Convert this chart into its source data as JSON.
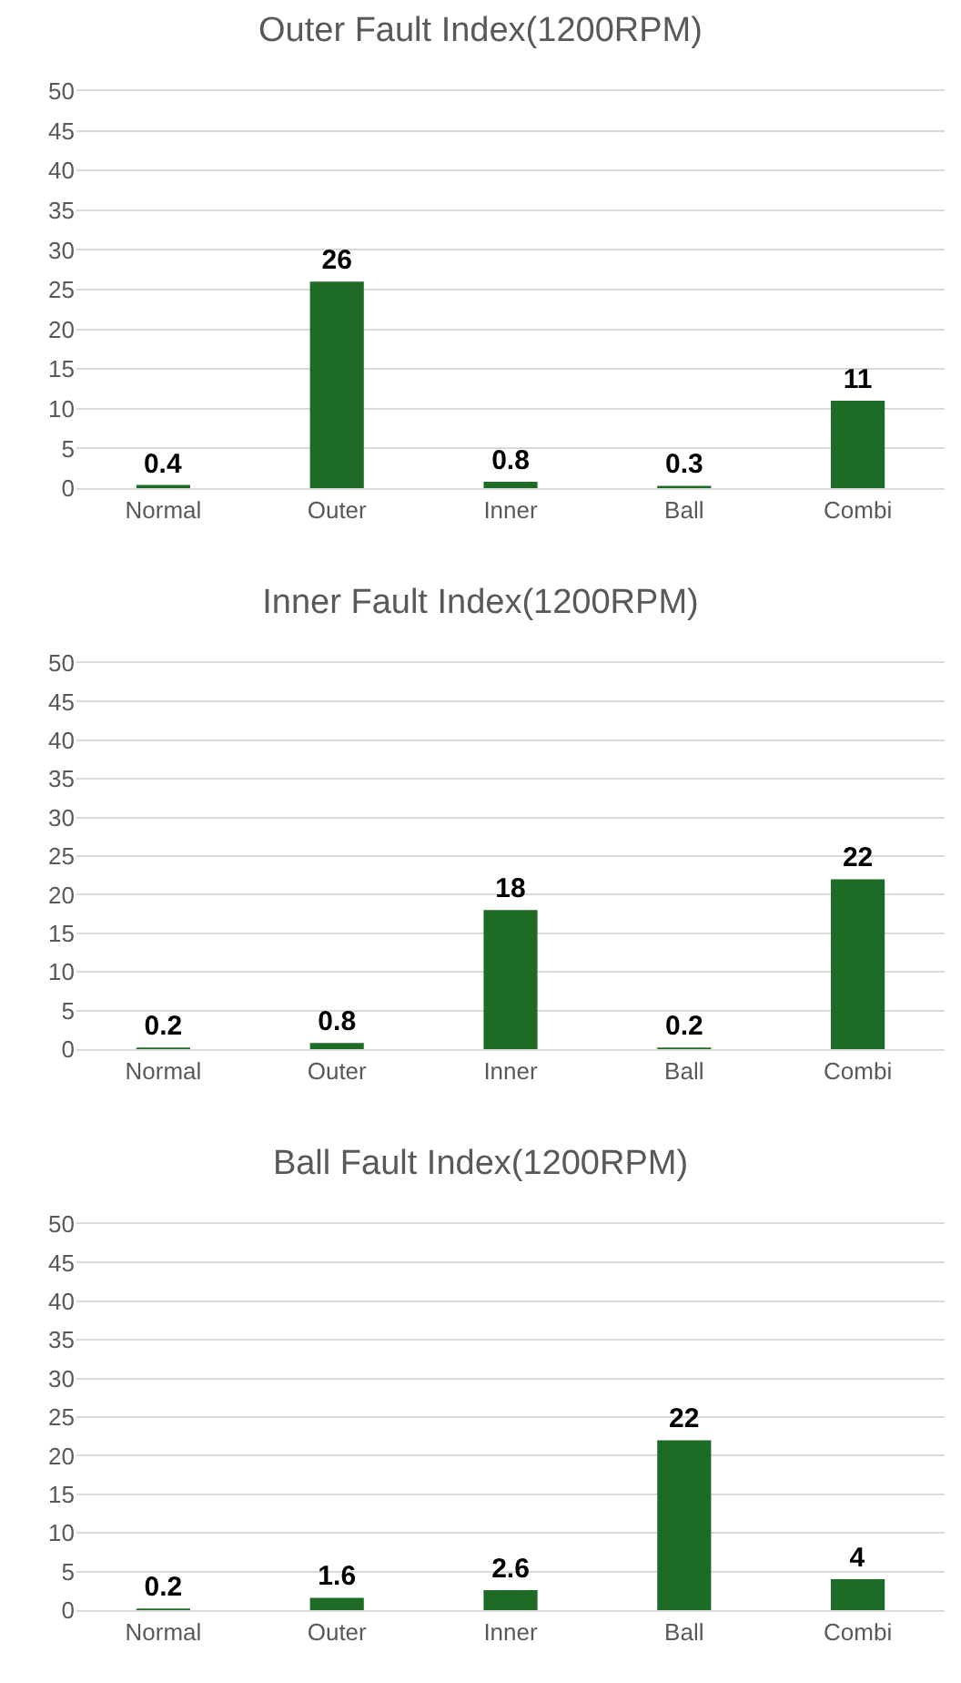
{
  "chart_data": [
    {
      "type": "bar",
      "title": "Outer Fault Index(1200RPM)",
      "categories": [
        "Normal",
        "Outer",
        "Inner",
        "Ball",
        "Combi"
      ],
      "values": [
        0.4,
        26,
        0.8,
        0.3,
        11
      ],
      "color": "#1d6b24",
      "ylim": [
        0,
        50
      ],
      "yticks": [
        0,
        5,
        10,
        15,
        20,
        25,
        30,
        35,
        40,
        45,
        50
      ],
      "grid": "y",
      "data_labels": true
    },
    {
      "type": "bar",
      "title": "Inner Fault Index(1200RPM)",
      "categories": [
        "Normal",
        "Outer",
        "Inner",
        "Ball",
        "Combi"
      ],
      "values": [
        0.2,
        0.8,
        18,
        0.2,
        22
      ],
      "color": "#1d6b24",
      "ylim": [
        0,
        50
      ],
      "yticks": [
        0,
        5,
        10,
        15,
        20,
        25,
        30,
        35,
        40,
        45,
        50
      ],
      "grid": "y",
      "data_labels": true
    },
    {
      "type": "bar",
      "title": "Ball Fault Index(1200RPM)",
      "categories": [
        "Normal",
        "Outer",
        "Inner",
        "Ball",
        "Combi"
      ],
      "values": [
        0.2,
        1.6,
        2.6,
        22,
        4
      ],
      "color": "#1d6b24",
      "ylim": [
        0,
        50
      ],
      "yticks": [
        0,
        5,
        10,
        15,
        20,
        25,
        30,
        35,
        40,
        45,
        50
      ],
      "grid": "y",
      "data_labels": true
    }
  ]
}
